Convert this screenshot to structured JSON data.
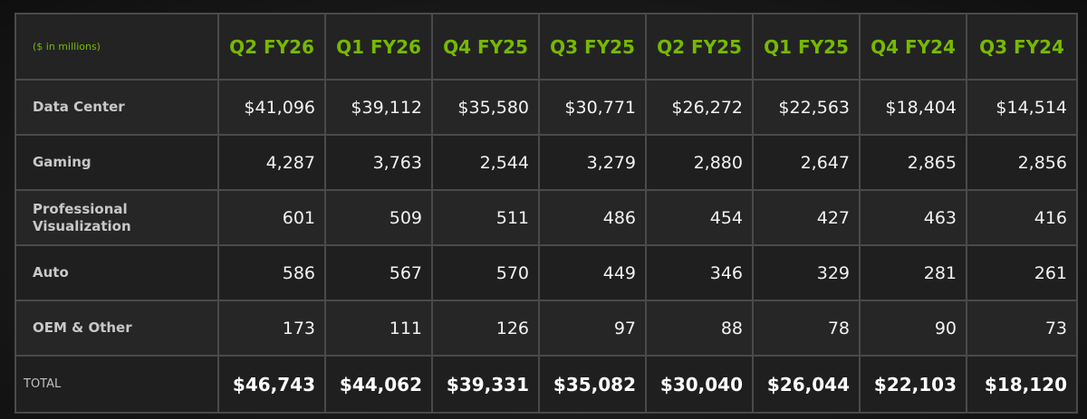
{
  "chart_data": {
    "type": "table",
    "unit_label": "($ in millions)",
    "columns": [
      "Q2 FY26",
      "Q1 FY26",
      "Q4 FY25",
      "Q3 FY25",
      "Q2 FY25",
      "Q1 FY25",
      "Q4 FY24",
      "Q3 FY24"
    ],
    "rows": [
      {
        "label": "Data Center",
        "values": [
          "$41,096",
          "$39,112",
          "$35,580",
          "$30,771",
          "$26,272",
          "$22,563",
          "$18,404",
          "$14,514"
        ]
      },
      {
        "label": "Gaming",
        "values": [
          "4,287",
          "3,763",
          "2,544",
          "3,279",
          "2,880",
          "2,647",
          "2,865",
          "2,856"
        ]
      },
      {
        "label": "Professional Visualization",
        "values": [
          "601",
          "509",
          "511",
          "486",
          "454",
          "427",
          "463",
          "416"
        ]
      },
      {
        "label": "Auto",
        "values": [
          "586",
          "567",
          "570",
          "449",
          "346",
          "329",
          "281",
          "261"
        ]
      },
      {
        "label": "OEM & Other",
        "values": [
          "173",
          "111",
          "126",
          "97",
          "88",
          "78",
          "90",
          "73"
        ]
      }
    ],
    "total": {
      "label": "TOTAL",
      "values": [
        "$46,743",
        "$44,062",
        "$39,331",
        "$35,082",
        "$30,040",
        "$26,044",
        "$22,103",
        "$18,120"
      ]
    }
  }
}
